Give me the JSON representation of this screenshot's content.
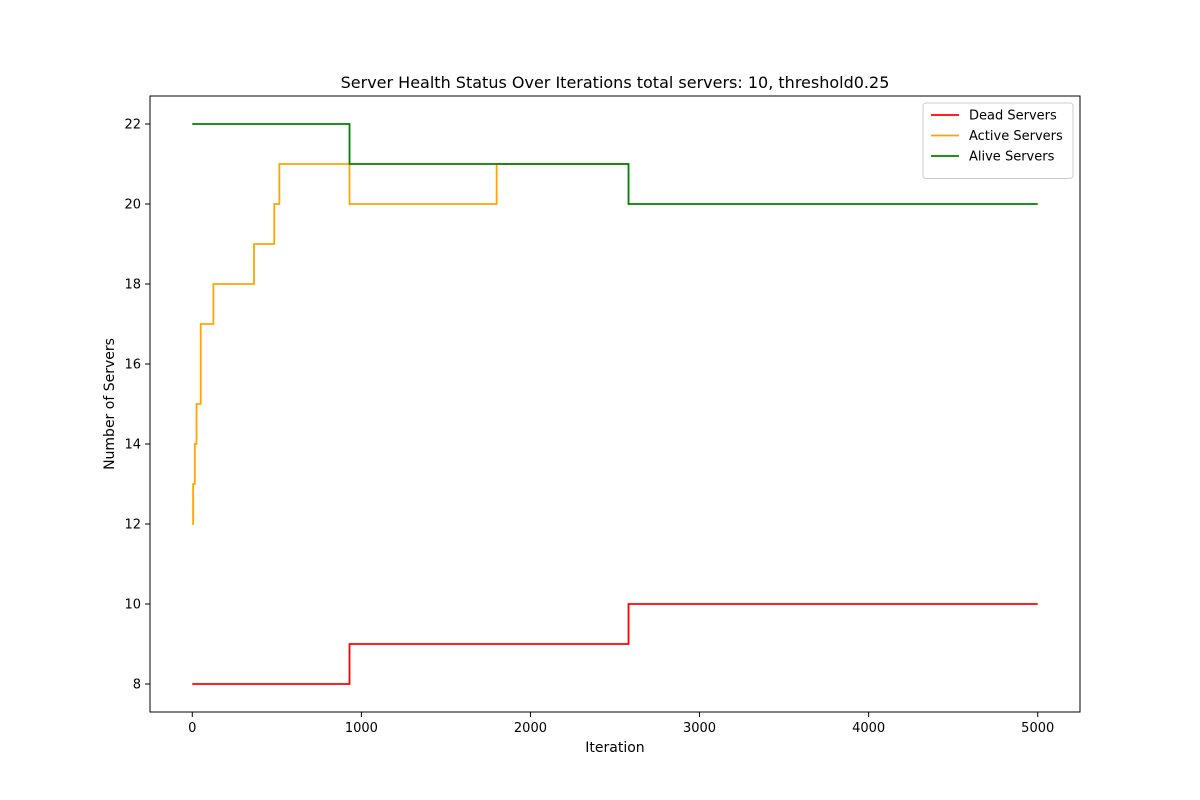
{
  "chart_data": {
    "type": "line",
    "title": "Server Health Status Over Iterations total servers: 10, threshold0.25",
    "xlabel": "Iteration",
    "ylabel": "Number of Servers",
    "xlim": [
      -250,
      5250
    ],
    "ylim": [
      7.3,
      22.7
    ],
    "xticks": [
      0,
      1000,
      2000,
      3000,
      4000,
      5000
    ],
    "yticks": [
      8,
      10,
      12,
      14,
      16,
      18,
      20,
      22
    ],
    "grid": false,
    "legend": "top-right",
    "step": "post",
    "series": [
      {
        "name": "Dead Servers",
        "color": "#ff0000",
        "x": [
          0,
          930,
          2580,
          5000
        ],
        "y": [
          8,
          9,
          10,
          10
        ]
      },
      {
        "name": "Active Servers",
        "color": "#ffa500",
        "x": [
          0,
          5,
          15,
          25,
          50,
          125,
          365,
          485,
          515,
          930,
          1800,
          2580
        ],
        "y": [
          12,
          13,
          14,
          15,
          17,
          18,
          19,
          20,
          21,
          20,
          21,
          21
        ]
      },
      {
        "name": "Alive Servers",
        "color": "#008000",
        "x": [
          0,
          930,
          2580,
          5000
        ],
        "y": [
          22,
          21,
          20,
          20
        ]
      }
    ]
  }
}
